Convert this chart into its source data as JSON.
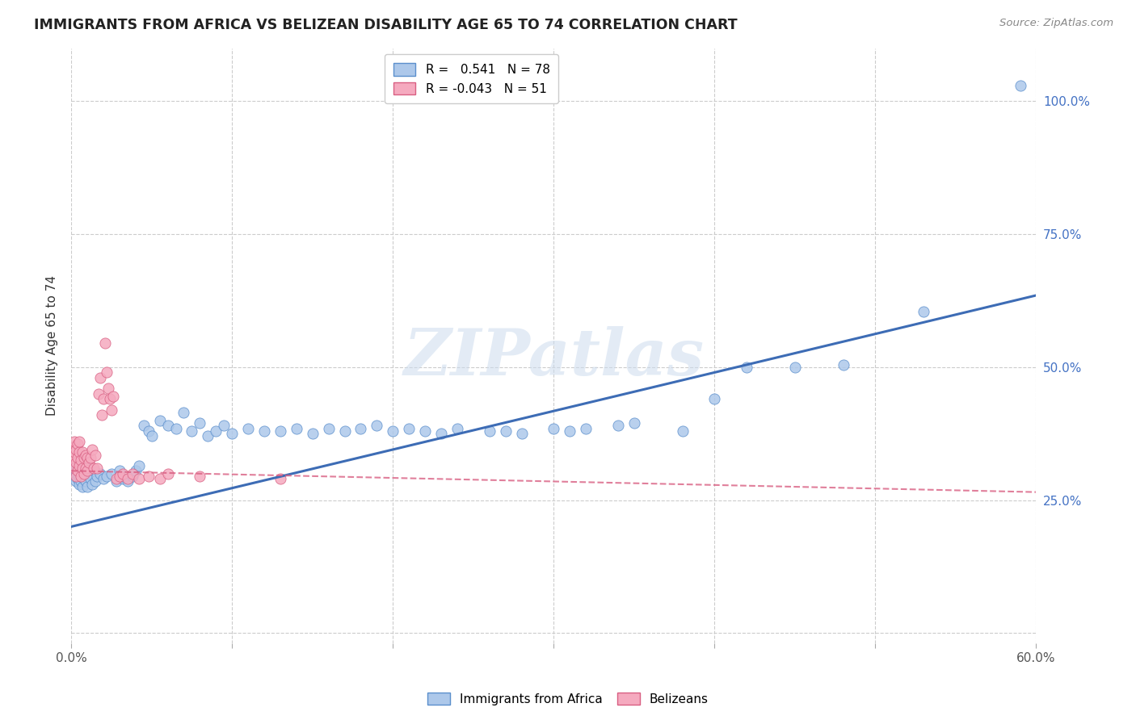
{
  "title": "IMMIGRANTS FROM AFRICA VS BELIZEAN DISABILITY AGE 65 TO 74 CORRELATION CHART",
  "source": "Source: ZipAtlas.com",
  "ylabel": "Disability Age 65 to 74",
  "xlim": [
    0.0,
    0.6
  ],
  "ylim": [
    -0.02,
    1.1
  ],
  "ytick_labels": [
    "",
    "25.0%",
    "50.0%",
    "75.0%",
    "100.0%"
  ],
  "ytick_vals": [
    0.0,
    0.25,
    0.5,
    0.75,
    1.0
  ],
  "africa_r": 0.541,
  "africa_n": 78,
  "belizean_r": -0.043,
  "belizean_n": 51,
  "africa_color": "#adc8ea",
  "africa_edge_color": "#5b8fcc",
  "belizean_color": "#f5aabf",
  "belizean_edge_color": "#d95f82",
  "africa_line_color": "#3d6cb5",
  "belizean_line_color": "#d95f82",
  "watermark": "ZIPatlas",
  "africa_line_x0": 0.0,
  "africa_line_y0": 0.2,
  "africa_line_x1": 0.6,
  "africa_line_y1": 0.635,
  "belizean_line_x0": 0.0,
  "belizean_line_y0": 0.305,
  "belizean_line_x1": 0.6,
  "belizean_line_y1": 0.265,
  "africa_scatter_x": [
    0.001,
    0.002,
    0.002,
    0.003,
    0.003,
    0.003,
    0.004,
    0.004,
    0.005,
    0.005,
    0.006,
    0.006,
    0.007,
    0.007,
    0.008,
    0.008,
    0.009,
    0.01,
    0.01,
    0.011,
    0.012,
    0.013,
    0.014,
    0.015,
    0.016,
    0.018,
    0.02,
    0.022,
    0.025,
    0.028,
    0.03,
    0.032,
    0.035,
    0.038,
    0.04,
    0.042,
    0.045,
    0.048,
    0.05,
    0.055,
    0.06,
    0.065,
    0.07,
    0.075,
    0.08,
    0.085,
    0.09,
    0.095,
    0.1,
    0.11,
    0.12,
    0.13,
    0.14,
    0.15,
    0.16,
    0.17,
    0.18,
    0.19,
    0.2,
    0.21,
    0.22,
    0.23,
    0.24,
    0.26,
    0.27,
    0.28,
    0.3,
    0.31,
    0.32,
    0.34,
    0.35,
    0.38,
    0.4,
    0.42,
    0.45,
    0.48,
    0.53,
    0.59
  ],
  "africa_scatter_y": [
    0.3,
    0.295,
    0.31,
    0.285,
    0.3,
    0.315,
    0.29,
    0.305,
    0.28,
    0.295,
    0.31,
    0.285,
    0.3,
    0.275,
    0.29,
    0.305,
    0.285,
    0.31,
    0.275,
    0.3,
    0.29,
    0.28,
    0.305,
    0.285,
    0.295,
    0.3,
    0.29,
    0.295,
    0.3,
    0.285,
    0.305,
    0.29,
    0.285,
    0.295,
    0.305,
    0.315,
    0.39,
    0.38,
    0.37,
    0.4,
    0.39,
    0.385,
    0.415,
    0.38,
    0.395,
    0.37,
    0.38,
    0.39,
    0.375,
    0.385,
    0.38,
    0.38,
    0.385,
    0.375,
    0.385,
    0.38,
    0.385,
    0.39,
    0.38,
    0.385,
    0.38,
    0.375,
    0.385,
    0.38,
    0.38,
    0.375,
    0.385,
    0.38,
    0.385,
    0.39,
    0.395,
    0.38,
    0.44,
    0.5,
    0.5,
    0.505,
    0.605,
    1.03
  ],
  "belizean_scatter_x": [
    0.001,
    0.001,
    0.002,
    0.002,
    0.002,
    0.003,
    0.003,
    0.003,
    0.004,
    0.004,
    0.004,
    0.005,
    0.005,
    0.005,
    0.006,
    0.006,
    0.007,
    0.007,
    0.008,
    0.008,
    0.009,
    0.009,
    0.01,
    0.01,
    0.011,
    0.012,
    0.013,
    0.014,
    0.015,
    0.016,
    0.017,
    0.018,
    0.019,
    0.02,
    0.021,
    0.022,
    0.023,
    0.024,
    0.025,
    0.026,
    0.028,
    0.03,
    0.032,
    0.035,
    0.038,
    0.042,
    0.048,
    0.055,
    0.06,
    0.08,
    0.13
  ],
  "belizean_scatter_y": [
    0.33,
    0.35,
    0.31,
    0.34,
    0.36,
    0.295,
    0.32,
    0.345,
    0.305,
    0.33,
    0.355,
    0.315,
    0.34,
    0.36,
    0.295,
    0.325,
    0.31,
    0.34,
    0.3,
    0.33,
    0.31,
    0.335,
    0.305,
    0.33,
    0.32,
    0.33,
    0.345,
    0.31,
    0.335,
    0.31,
    0.45,
    0.48,
    0.41,
    0.44,
    0.545,
    0.49,
    0.46,
    0.44,
    0.42,
    0.445,
    0.29,
    0.295,
    0.3,
    0.29,
    0.3,
    0.29,
    0.295,
    0.29,
    0.3,
    0.295,
    0.29
  ]
}
